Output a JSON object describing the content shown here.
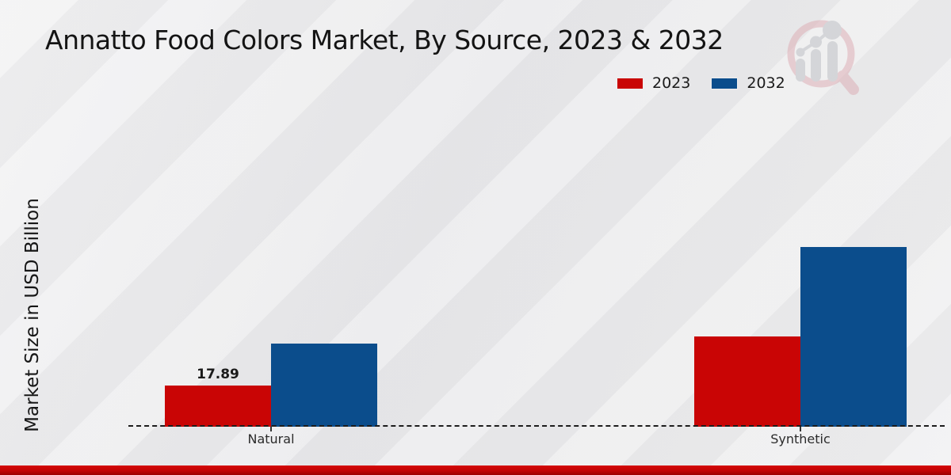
{
  "chart_data": {
    "type": "bar",
    "title": "Annatto Food Colors Market, By Source, 2023 & 2032",
    "ylabel": "Market Size in USD Billion",
    "xlabel": "",
    "categories": [
      "Natural",
      "Synthetic"
    ],
    "series": [
      {
        "name": "2023",
        "color": "#c90505",
        "values": [
          17.89,
          39.2
        ]
      },
      {
        "name": "2032",
        "color": "#0b4d8c",
        "values": [
          36.1,
          78.1
        ]
      }
    ],
    "annotations": [
      {
        "category": "Natural",
        "series": "2023",
        "text": "17.89"
      }
    ],
    "ylim": [
      0,
      95
    ],
    "grid": false,
    "legend_position": "top-right",
    "baseline_style": "dashed",
    "y_axis_visible": false
  },
  "footer": {
    "accent_color": "#c30404"
  },
  "watermark": {
    "icon": "magnifier-bar-chart-logo"
  }
}
